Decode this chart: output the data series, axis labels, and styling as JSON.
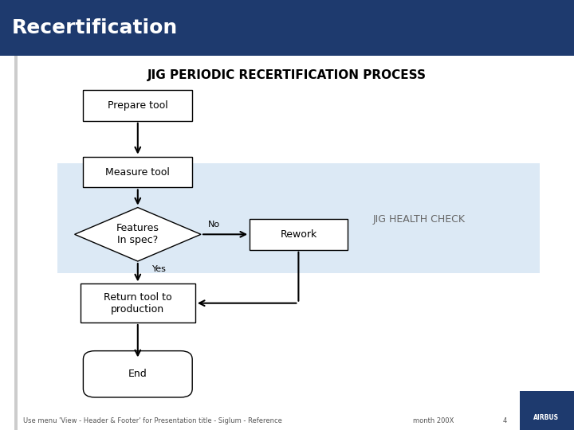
{
  "title_bar_color": "#1e3a6e",
  "title_text": "Recertification",
  "title_text_color": "#ffffff",
  "subtitle_text": "JIG PERIODIC RECERTIFICATION PROCESS",
  "subtitle_color": "#000000",
  "bg_color": "#ffffff",
  "health_check_bg": "#dce9f5",
  "health_check_text": "JIG HEALTH CHECK",
  "footer_text": "Use menu 'View - Header & Footer' for Presentation title - Siglum - Reference",
  "footer_right": "month 200X",
  "footer_page": "4",
  "airbus_bg": "#1e3a6e",
  "box_edge_color": "#000000",
  "arrow_color": "#000000",
  "font_size_title": 18,
  "font_size_subtitle": 11,
  "font_size_node": 9,
  "font_size_footer": 6
}
